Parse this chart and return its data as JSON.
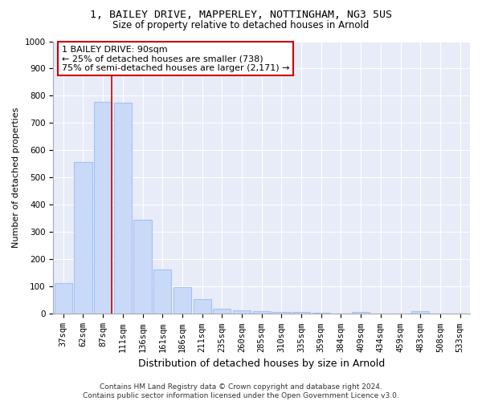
{
  "title1": "1, BAILEY DRIVE, MAPPERLEY, NOTTINGHAM, NG3 5US",
  "title2": "Size of property relative to detached houses in Arnold",
  "xlabel": "Distribution of detached houses by size in Arnold",
  "ylabel": "Number of detached properties",
  "categories": [
    "37sqm",
    "62sqm",
    "87sqm",
    "111sqm",
    "136sqm",
    "161sqm",
    "186sqm",
    "211sqm",
    "235sqm",
    "260sqm",
    "285sqm",
    "310sqm",
    "335sqm",
    "359sqm",
    "384sqm",
    "409sqm",
    "434sqm",
    "459sqm",
    "483sqm",
    "508sqm",
    "533sqm"
  ],
  "values": [
    112,
    557,
    778,
    775,
    345,
    163,
    98,
    55,
    18,
    14,
    10,
    8,
    7,
    4,
    0,
    8,
    0,
    0,
    9,
    0,
    0
  ],
  "bar_color": "#c9daf8",
  "bar_edge_color": "#a4c2f4",
  "red_line_idx": 2.45,
  "annotation_text": "1 BAILEY DRIVE: 90sqm\n← 25% of detached houses are smaller (738)\n75% of semi-detached houses are larger (2,171) →",
  "annotation_box_color": "#ffffff",
  "annotation_box_edge_color": "#cc0000",
  "footer": "Contains HM Land Registry data © Crown copyright and database right 2024.\nContains public sector information licensed under the Open Government Licence v3.0.",
  "ylim": [
    0,
    1000
  ],
  "yticks": [
    0,
    100,
    200,
    300,
    400,
    500,
    600,
    700,
    800,
    900,
    1000
  ],
  "bg_color": "#ffffff",
  "plot_bg_color": "#e8ecf8",
  "title1_fontsize": 9.5,
  "title2_fontsize": 8.5,
  "xlabel_fontsize": 9,
  "ylabel_fontsize": 8,
  "tick_fontsize": 7.5,
  "footer_fontsize": 6.5,
  "grid_color": "#ffffff",
  "spine_color": "#aaaaaa"
}
